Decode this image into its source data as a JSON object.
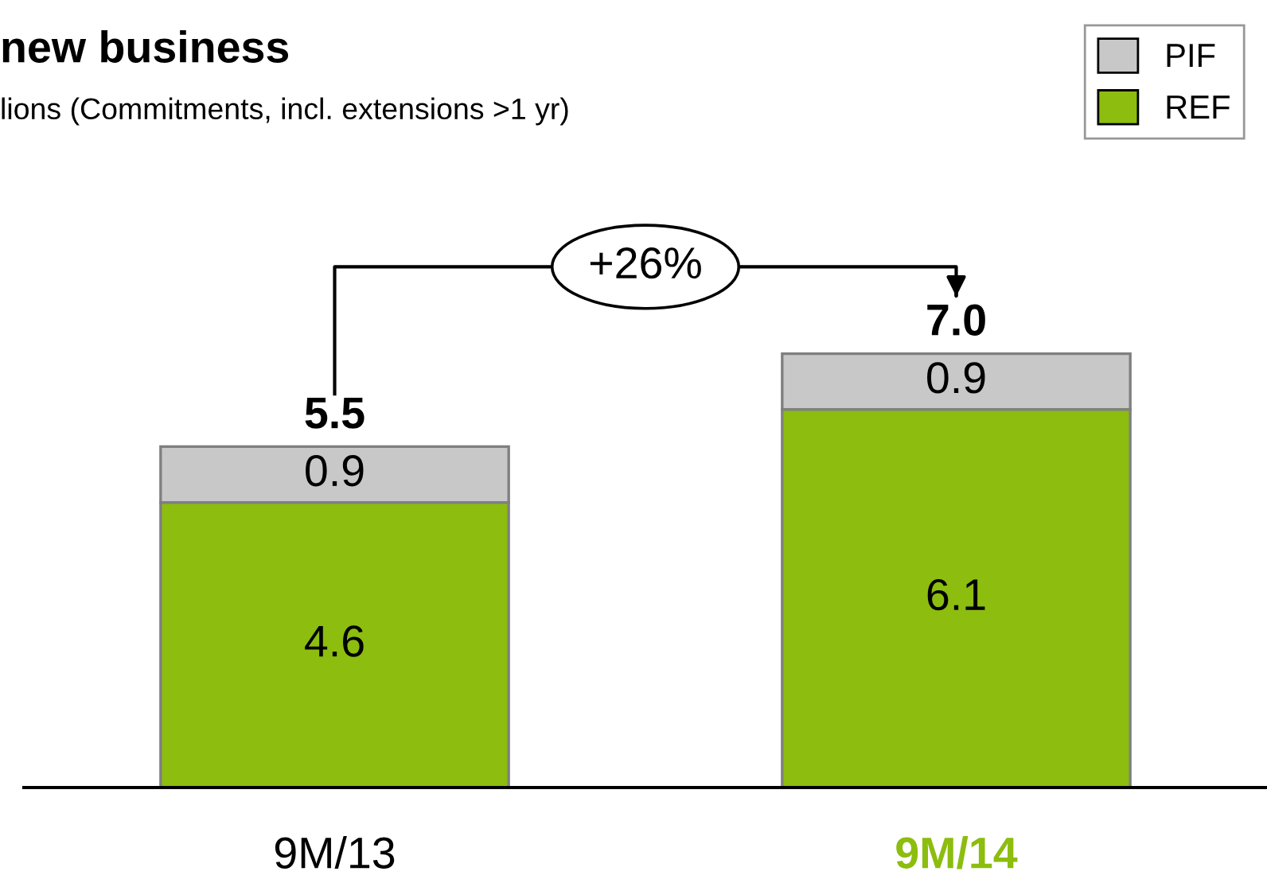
{
  "chart_data": {
    "type": "bar",
    "stacked": true,
    "title": "new business",
    "subtitle": "lions (Commitments, incl. extensions >1 yr)",
    "categories": [
      "9M/13",
      "9M/14"
    ],
    "series": [
      {
        "name": "REF",
        "color": "#8cbd0f",
        "values": [
          4.6,
          6.1
        ]
      },
      {
        "name": "PIF",
        "color": "#c8c8c8",
        "values": [
          0.9,
          0.9
        ]
      }
    ],
    "data_labels": true,
    "totals": [
      "5.5",
      "7.0"
    ],
    "annotations": [
      "+26%"
    ],
    "legend": "top right",
    "grid": false
  }
}
